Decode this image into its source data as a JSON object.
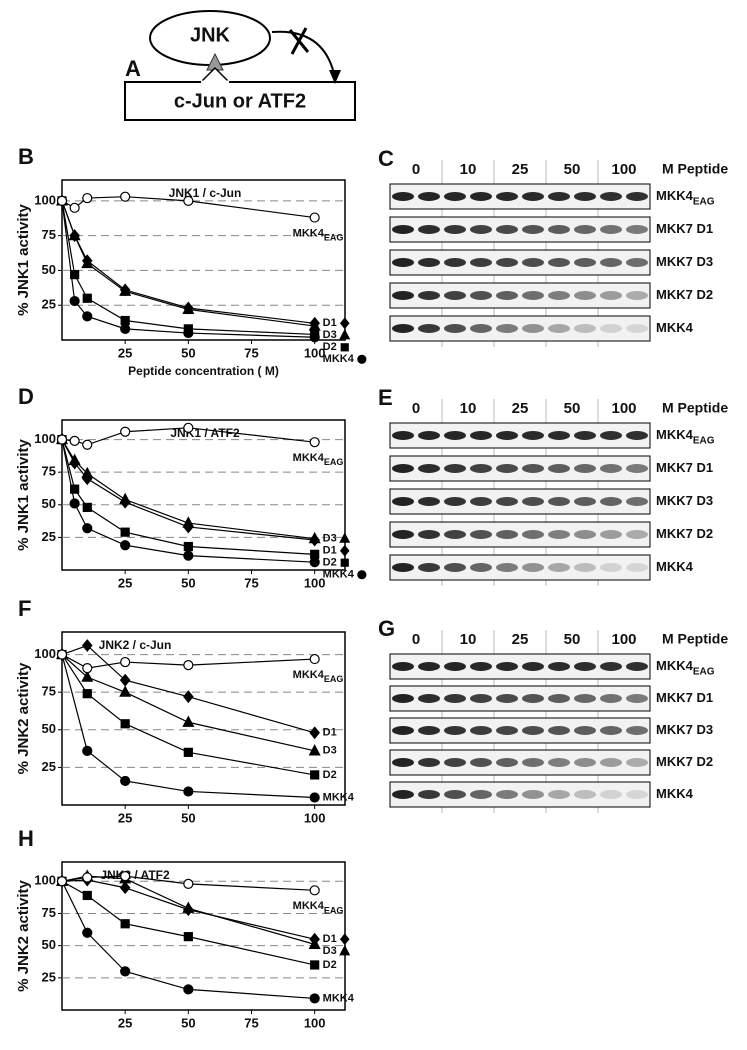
{
  "diagram": {
    "panel": "A",
    "enzyme": "JNK",
    "substrate": "c-Jun or ATF2"
  },
  "chart_data": [
    {
      "type": "line",
      "panel": "B",
      "title": "JNK1 / c-Jun",
      "y_label": "% JNK1 activity",
      "x_label": "Peptide concentration ( M)",
      "x": [
        0,
        5,
        10,
        25,
        50,
        100
      ],
      "xlim": [
        0,
        112
      ],
      "xticks": [
        25,
        50,
        75,
        100
      ],
      "ylim": [
        0,
        115
      ],
      "yticks": [
        25,
        50,
        75,
        100
      ],
      "grid": true,
      "series": [
        {
          "name": "D1",
          "marker": "diamond",
          "color": "#000000",
          "marker_fill": "#000000",
          "label_marker": true,
          "values": [
            100,
            75,
            57,
            36,
            23,
            12
          ]
        },
        {
          "name": "D3",
          "marker": "triangle",
          "color": "#000000",
          "marker_fill": "#000000",
          "label_marker": true,
          "values": [
            100,
            75,
            55,
            35,
            22,
            10
          ]
        },
        {
          "name": "D2",
          "marker": "square",
          "color": "#000000",
          "marker_fill": "#000000",
          "label_marker": true,
          "values": [
            100,
            47,
            30,
            14,
            8,
            4
          ]
        },
        {
          "name": "MKK4",
          "marker": "circle",
          "color": "#000000",
          "marker_fill": "#000000",
          "label_marker": true,
          "values": [
            100,
            28,
            17,
            8,
            5,
            2
          ]
        },
        {
          "name": "MKK4",
          "name_sub": "EAG",
          "marker": "circle",
          "color": "#000000",
          "marker_fill": "#ffffff",
          "label_marker": false,
          "values": [
            100,
            95,
            102,
            103,
            100,
            88
          ]
        }
      ]
    },
    {
      "type": "line",
      "panel": "D",
      "title": "JNK1 / ATF2",
      "y_label": "% JNK1 activity",
      "x": [
        0,
        5,
        10,
        25,
        50,
        100
      ],
      "xlim": [
        0,
        112
      ],
      "xticks": [
        25,
        50,
        75,
        100
      ],
      "ylim": [
        0,
        115
      ],
      "yticks": [
        25,
        50,
        75,
        100
      ],
      "grid": true,
      "series": [
        {
          "name": "D3",
          "marker": "triangle",
          "color": "#000000",
          "marker_fill": "#000000",
          "label_marker": true,
          "values": [
            100,
            84,
            74,
            54,
            36,
            24
          ]
        },
        {
          "name": "D1",
          "marker": "diamond",
          "color": "#000000",
          "marker_fill": "#000000",
          "label_marker": true,
          "values": [
            100,
            82,
            70,
            52,
            33,
            23
          ]
        },
        {
          "name": "D2",
          "marker": "square",
          "color": "#000000",
          "marker_fill": "#000000",
          "label_marker": true,
          "values": [
            100,
            62,
            48,
            29,
            18,
            12
          ]
        },
        {
          "name": "MKK4",
          "marker": "circle",
          "color": "#000000",
          "marker_fill": "#000000",
          "label_marker": true,
          "values": [
            100,
            51,
            32,
            19,
            11,
            6
          ]
        },
        {
          "name": "MKK4",
          "name_sub": "EAG",
          "marker": "circle",
          "color": "#000000",
          "marker_fill": "#ffffff",
          "label_marker": false,
          "values": [
            100,
            99,
            96,
            106,
            109,
            98
          ]
        }
      ]
    },
    {
      "type": "line",
      "panel": "F",
      "title": "JNK2 / c-Jun",
      "y_label": "% JNK2 activity",
      "x": [
        0,
        10,
        25,
        50,
        100
      ],
      "xlim": [
        0,
        112
      ],
      "xticks": [
        25,
        50,
        100
      ],
      "ylim": [
        0,
        115
      ],
      "yticks": [
        25,
        50,
        75,
        100
      ],
      "grid": true,
      "series": [
        {
          "name": "D1",
          "marker": "diamond",
          "color": "#000000",
          "marker_fill": "#000000",
          "label_marker": false,
          "values": [
            100,
            106,
            83,
            72,
            48
          ]
        },
        {
          "name": "D3",
          "marker": "triangle",
          "color": "#000000",
          "marker_fill": "#000000",
          "label_marker": false,
          "values": [
            100,
            85,
            75,
            55,
            36
          ]
        },
        {
          "name": "D2",
          "marker": "square",
          "color": "#000000",
          "marker_fill": "#000000",
          "label_marker": false,
          "values": [
            100,
            74,
            54,
            35,
            20
          ]
        },
        {
          "name": "MKK4",
          "marker": "circle",
          "color": "#000000",
          "marker_fill": "#000000",
          "label_marker": false,
          "values": [
            100,
            36,
            16,
            9,
            5
          ]
        },
        {
          "name": "MKK4",
          "name_sub": "EAG",
          "marker": "circle",
          "color": "#000000",
          "marker_fill": "#ffffff",
          "label_marker": false,
          "values": [
            100,
            91,
            95,
            93,
            97
          ]
        }
      ]
    },
    {
      "type": "line",
      "panel": "H",
      "title": "JNK2 / ATF2",
      "y_label": "% JNK2 activity",
      "x": [
        0,
        10,
        25,
        50,
        100
      ],
      "xlim": [
        0,
        112
      ],
      "xticks": [
        25,
        50,
        75,
        100
      ],
      "ylim": [
        0,
        115
      ],
      "yticks": [
        25,
        50,
        75,
        100
      ],
      "grid": true,
      "series": [
        {
          "name": "D1",
          "marker": "diamond",
          "color": "#000000",
          "marker_fill": "#000000",
          "label_marker": true,
          "values": [
            100,
            101,
            95,
            78,
            55
          ]
        },
        {
          "name": "D3",
          "marker": "triangle",
          "color": "#000000",
          "marker_fill": "#000000",
          "label_marker": true,
          "values": [
            100,
            104,
            102,
            79,
            51
          ]
        },
        {
          "name": "D2",
          "marker": "square",
          "color": "#000000",
          "marker_fill": "#000000",
          "label_marker": false,
          "values": [
            100,
            89,
            67,
            57,
            35
          ]
        },
        {
          "name": "MKK4",
          "marker": "circle",
          "color": "#000000",
          "marker_fill": "#000000",
          "label_marker": false,
          "values": [
            100,
            60,
            30,
            16,
            9
          ]
        },
        {
          "name": "MKK4",
          "name_sub": "EAG",
          "marker": "circle",
          "color": "#000000",
          "marker_fill": "#ffffff",
          "label_marker": false,
          "values": [
            100,
            103,
            104,
            98,
            93
          ]
        }
      ]
    }
  ],
  "blots": [
    {
      "panel": "C",
      "concentrations": [
        0,
        10,
        25,
        50,
        100
      ],
      "unit": "M Peptide",
      "rows": [
        {
          "name": "MKK4",
          "subscript": "EAG"
        },
        {
          "name": "MKK7 D1"
        },
        {
          "name": "MKK7 D3"
        },
        {
          "name": "MKK7 D2"
        },
        {
          "name": "MKK4"
        }
      ]
    },
    {
      "panel": "E",
      "concentrations": [
        0,
        10,
        25,
        50,
        100
      ],
      "unit": "M Peptide",
      "rows": [
        {
          "name": "MKK4",
          "subscript": "EAG"
        },
        {
          "name": "MKK7 D1"
        },
        {
          "name": "MKK7 D3"
        },
        {
          "name": "MKK7 D2"
        },
        {
          "name": "MKK4"
        }
      ]
    },
    {
      "panel": "G",
      "concentrations": [
        0,
        10,
        25,
        50,
        100
      ],
      "unit": "M Peptide",
      "rows": [
        {
          "name": "MKK4",
          "subscript": "EAG"
        },
        {
          "name": "MKK7 D1"
        },
        {
          "name": "MKK7 D3"
        },
        {
          "name": "MKK7 D2"
        },
        {
          "name": "MKK4"
        }
      ]
    }
  ]
}
